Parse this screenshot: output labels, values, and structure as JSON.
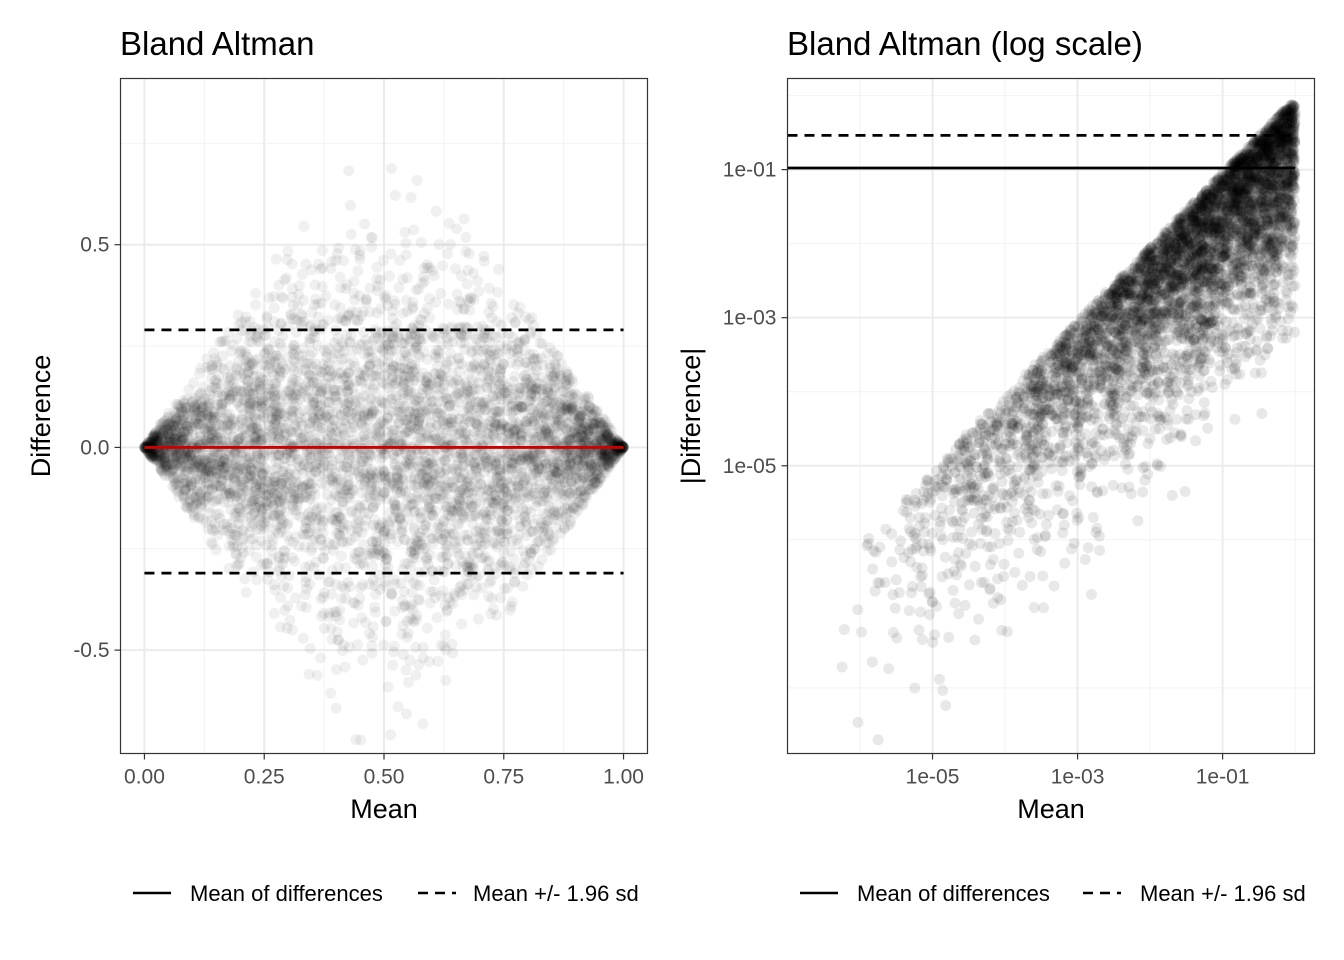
{
  "chart_data": [
    {
      "type": "scatter",
      "title": "Bland Altman",
      "xlabel": "Mean",
      "ylabel": "Difference",
      "xlim": [
        -0.05,
        1.05
      ],
      "ylim": [
        -0.755,
        0.91
      ],
      "x_ticks": [
        0.0,
        0.25,
        0.5,
        0.75,
        1.0
      ],
      "x_tick_labels": [
        "0.00",
        "0.25",
        "0.50",
        "0.75",
        "1.00"
      ],
      "y_ticks": [
        -0.5,
        0.0,
        0.5
      ],
      "y_tick_labels": [
        "-0.5",
        "0.0",
        "0.5"
      ],
      "points_color": "#000000",
      "points_alpha": 0.06,
      "reference_lines": [
        {
          "name": "mean_line",
          "y": 0.0,
          "x_range": [
            0.0,
            1.0
          ],
          "style": "solid",
          "color": "#cc0000"
        },
        {
          "name": "upper_limit",
          "y": 0.29,
          "x_range": [
            0.0,
            1.0
          ],
          "style": "dashed",
          "color": "#000000"
        },
        {
          "name": "lower_limit",
          "y": -0.31,
          "x_range": [
            0.0,
            1.0
          ],
          "style": "dashed",
          "color": "#000000"
        }
      ],
      "grid": true,
      "legend_position": "bottom",
      "legend": [
        {
          "label": "Mean of differences",
          "style": "solid"
        },
        {
          "label": "Mean +/- 1.96 sd",
          "style": "dashed"
        }
      ]
    },
    {
      "type": "scatter",
      "title": "Bland Altman (log scale)",
      "xlabel": "Mean",
      "ylabel": "|Difference|",
      "x_scale": "log",
      "y_scale": "log",
      "xlim": [
        1e-07,
        1.85
      ],
      "ylim": [
        1.3e-09,
        1.7
      ],
      "x_ticks": [
        1e-05,
        0.001,
        0.1
      ],
      "x_tick_labels": [
        "1e-05",
        "1e-03",
        "1e-01"
      ],
      "y_ticks": [
        1e-05,
        0.001,
        0.1
      ],
      "y_tick_labels": [
        "1e-05",
        "1e-03",
        "1e-01"
      ],
      "points_color": "#000000",
      "points_alpha": 0.06,
      "reference_lines": [
        {
          "name": "mean_line",
          "y": 0.105,
          "x_range": [
            1e-07,
            1.0
          ],
          "style": "solid",
          "color": "#000000"
        },
        {
          "name": "upper_limit",
          "y": 0.29,
          "x_range": [
            1e-07,
            1.0
          ],
          "style": "dashed",
          "color": "#000000"
        }
      ],
      "grid": true,
      "legend_position": "bottom",
      "legend": [
        {
          "label": "Mean of differences",
          "style": "solid"
        },
        {
          "label": "Mean +/- 1.96 sd",
          "style": "dashed"
        }
      ]
    }
  ]
}
